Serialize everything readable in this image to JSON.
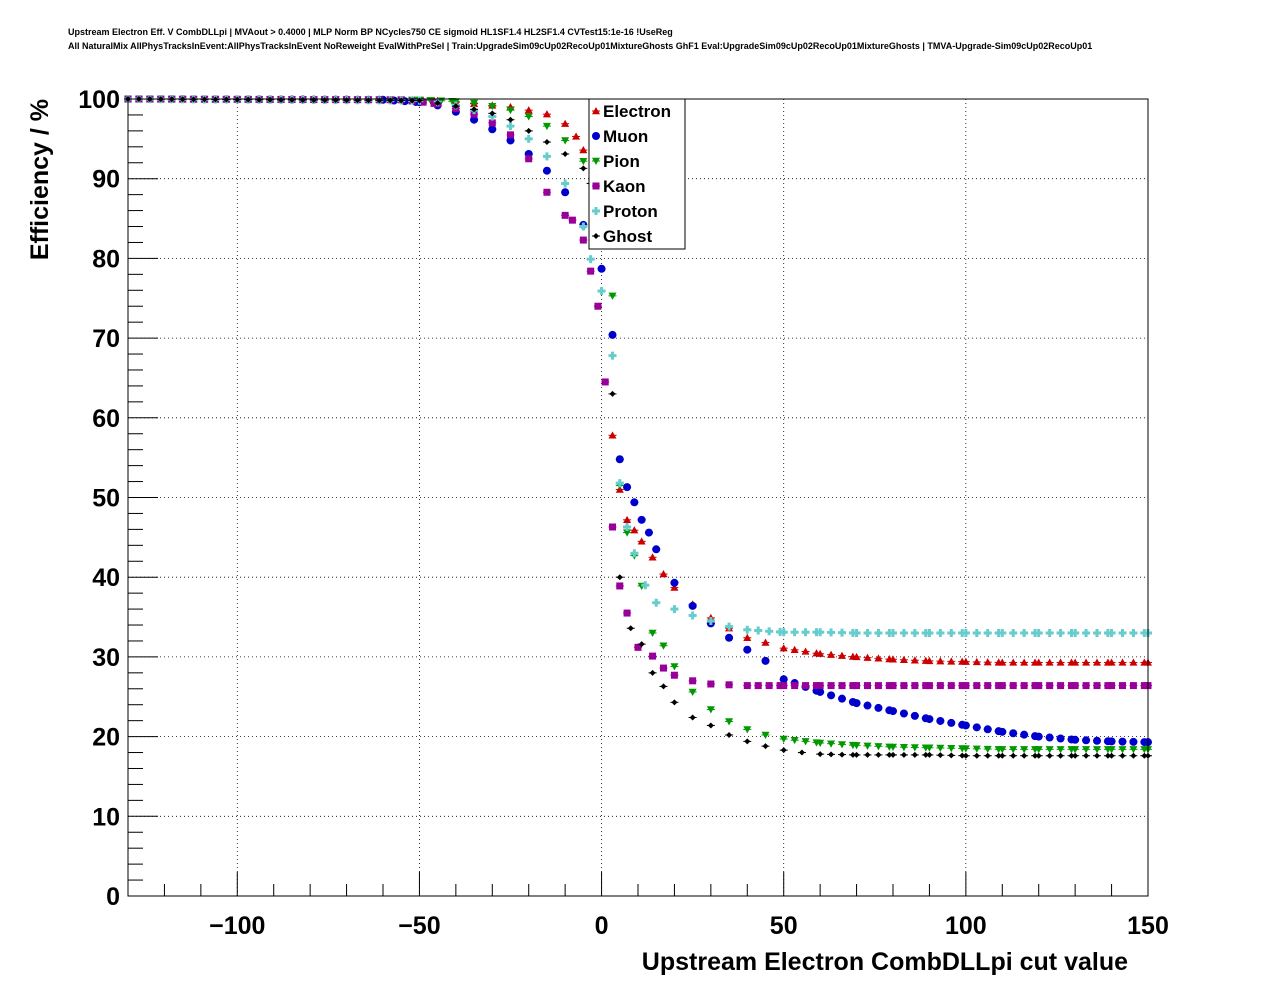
{
  "title_line_1": "Upstream Electron Eff. V CombDLLpi | MVAout > 0.4000 | MLP Norm BP NCycles750 CE sigmoid HL1SF1.4 HL2SF1.4 CVTest15:1e-16 !UseReg",
  "title_line_2": "All NaturalMix AllPhysTracksInEvent:AllPhysTracksInEvent NoReweight EvalWithPreSel | Train:UpgradeSim09cUp02RecoUp01MixtureGhosts GhF1 Eval:UpgradeSim09cUp02RecoUp01MixtureGhosts | TMVA-Upgrade-Sim09cUp02RecoUp01",
  "chart_data": {
    "type": "scatter",
    "xlabel": "Upstream Electron CombDLLpi cut value",
    "ylabel": "Efficiency / %",
    "xlim": [
      -130,
      150
    ],
    "ylim": [
      0,
      100
    ],
    "x_ticks": [
      -100,
      -50,
      0,
      50,
      100,
      150
    ],
    "x_tick_labels": [
      "−100",
      "−50",
      "0",
      "50",
      "100",
      "150"
    ],
    "y_ticks": [
      0,
      10,
      20,
      30,
      40,
      50,
      60,
      70,
      80,
      90,
      100
    ],
    "grid": true,
    "legend_position": "top-center",
    "series": [
      {
        "name": "Electron",
        "color": "#cc0000",
        "marker": "triangle-up",
        "x": [
          -130,
          -55,
          -45,
          -40,
          -35,
          -30,
          -25,
          -20,
          -15,
          -10,
          -7,
          -5,
          -2,
          0,
          3,
          5,
          7,
          9,
          11,
          14,
          17,
          20,
          25,
          30,
          35,
          40,
          45,
          50,
          60,
          70,
          80,
          90,
          100,
          110,
          120,
          130,
          140,
          150
        ],
        "y": [
          100,
          99.9,
          99.8,
          99.6,
          99.4,
          99.2,
          99.0,
          98.6,
          98.1,
          96.9,
          95.3,
          93.6,
          90.0,
          83.5,
          57.8,
          51.0,
          47.2,
          45.9,
          44.5,
          42.5,
          40.4,
          38.7,
          36.6,
          34.9,
          33.6,
          32.4,
          31.8,
          31.1,
          30.4,
          30.0,
          29.7,
          29.5,
          29.4,
          29.3,
          29.3,
          29.3,
          29.3,
          29.3
        ]
      },
      {
        "name": "Muon",
        "color": "#0000cc",
        "marker": "circle",
        "x": [
          -130,
          -60,
          -50,
          -45,
          -40,
          -35,
          -30,
          -25,
          -20,
          -15,
          -10,
          -5,
          0,
          3,
          5,
          7,
          9,
          11,
          13,
          15,
          20,
          25,
          30,
          35,
          40,
          45,
          50,
          60,
          70,
          80,
          90,
          100,
          110,
          120,
          130,
          140,
          150
        ],
        "y": [
          100,
          99.9,
          99.6,
          99.2,
          98.4,
          97.4,
          96.2,
          94.8,
          93.1,
          91.0,
          88.3,
          84.2,
          78.7,
          70.4,
          54.8,
          51.3,
          49.4,
          47.2,
          45.6,
          43.5,
          39.3,
          36.4,
          34.2,
          32.4,
          30.9,
          29.5,
          27.2,
          25.6,
          24.2,
          23.2,
          22.2,
          21.4,
          20.6,
          20.0,
          19.6,
          19.4,
          19.3
        ]
      },
      {
        "name": "Pion",
        "color": "#009900",
        "marker": "triangle-down",
        "x": [
          -130,
          -50,
          -40,
          -35,
          -30,
          -25,
          -20,
          -15,
          -10,
          -5,
          -2,
          0,
          3,
          5,
          7,
          9,
          11,
          14,
          17,
          20,
          25,
          30,
          35,
          40,
          45,
          50,
          60,
          70,
          80,
          90,
          100,
          110,
          120,
          130,
          140,
          150
        ],
        "y": [
          100,
          99.9,
          99.7,
          99.5,
          99.1,
          98.6,
          97.8,
          96.6,
          94.8,
          92.2,
          90.0,
          86.2,
          75.3,
          51.5,
          45.6,
          42.7,
          38.9,
          33.0,
          31.4,
          28.8,
          25.6,
          23.4,
          21.9,
          20.9,
          20.2,
          19.7,
          19.2,
          18.9,
          18.7,
          18.6,
          18.5,
          18.4,
          18.4,
          18.4,
          18.4,
          18.4
        ]
      },
      {
        "name": "Kaon",
        "color": "#990099",
        "marker": "square",
        "x": [
          -130,
          -55,
          -45,
          -40,
          -35,
          -30,
          -25,
          -20,
          -15,
          -10,
          -8,
          -5,
          -3,
          -1,
          1,
          3,
          5,
          7,
          10,
          14,
          17,
          20,
          25,
          30,
          35,
          40,
          50,
          60,
          70,
          80,
          90,
          100,
          110,
          120,
          130,
          140,
          150
        ],
        "y": [
          100,
          99.9,
          99.4,
          98.8,
          98.1,
          97.0,
          95.5,
          92.5,
          88.3,
          85.4,
          84.8,
          82.3,
          78.4,
          74.0,
          64.5,
          46.3,
          38.9,
          35.5,
          31.2,
          30.1,
          28.6,
          27.7,
          27.0,
          26.6,
          26.5,
          26.4,
          26.4,
          26.4,
          26.4,
          26.4,
          26.4,
          26.4,
          26.4,
          26.4,
          26.4,
          26.4,
          26.4
        ]
      },
      {
        "name": "Proton",
        "color": "#66cccc",
        "marker": "cross",
        "x": [
          -130,
          -50,
          -45,
          -40,
          -35,
          -30,
          -25,
          -20,
          -15,
          -10,
          -5,
          -3,
          0,
          3,
          5,
          7,
          9,
          12,
          15,
          20,
          25,
          30,
          35,
          40,
          50,
          60,
          70,
          80,
          90,
          100,
          110,
          120,
          130,
          140,
          150
        ],
        "y": [
          100,
          99.8,
          99.6,
          99.2,
          98.6,
          97.8,
          96.6,
          95.0,
          92.8,
          89.4,
          84.0,
          79.9,
          75.9,
          67.8,
          51.8,
          46.3,
          43.0,
          39.0,
          36.8,
          36.0,
          35.2,
          34.5,
          33.8,
          33.4,
          33.1,
          33.1,
          33.0,
          33.0,
          33.0,
          33.0,
          33.0,
          33.0,
          33.0,
          33.0,
          33.0
        ]
      },
      {
        "name": "Ghost",
        "color": "#000000",
        "marker": "star",
        "x": [
          -130,
          -50,
          -45,
          -40,
          -35,
          -30,
          -25,
          -20,
          -15,
          -10,
          -5,
          -3,
          0,
          3,
          5,
          8,
          11,
          14,
          17,
          20,
          25,
          30,
          35,
          40,
          45,
          50,
          55,
          60,
          70,
          80,
          90,
          100,
          110,
          120,
          130,
          140,
          150
        ],
        "y": [
          100,
          99.8,
          99.5,
          99.1,
          98.7,
          98.2,
          97.4,
          96.0,
          94.6,
          93.1,
          91.3,
          89.4,
          86.2,
          63.0,
          40.0,
          33.6,
          31.6,
          28.0,
          26.3,
          24.3,
          22.4,
          21.4,
          20.2,
          19.4,
          18.8,
          18.3,
          18.0,
          17.8,
          17.7,
          17.7,
          17.7,
          17.6,
          17.6,
          17.6,
          17.6,
          17.6,
          17.6
        ]
      }
    ]
  }
}
